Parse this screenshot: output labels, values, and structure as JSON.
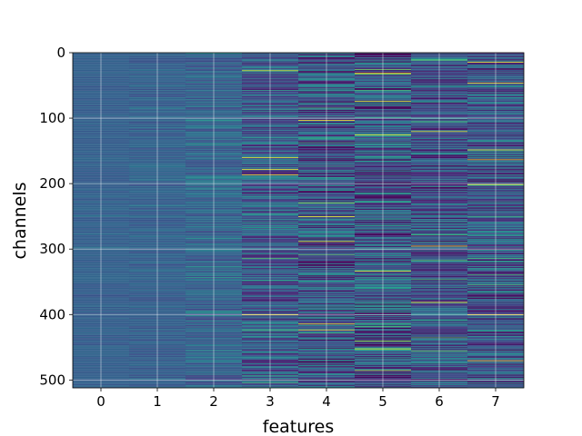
{
  "chart_data": {
    "type": "heatmap",
    "title": "",
    "xlabel": "features",
    "ylabel": "channels",
    "x_ticks": [
      "0",
      "1",
      "2",
      "3",
      "4",
      "5",
      "6",
      "7"
    ],
    "y_ticks": [
      "0",
      "100",
      "200",
      "300",
      "400",
      "500"
    ],
    "columns": 8,
    "rows": 512,
    "xlim": [
      -0.5,
      7.5
    ],
    "ylim": [
      512,
      0
    ],
    "y_axis_inverted": true,
    "grid": true,
    "colormap": "viridis",
    "colormap_stops": [
      "#440154",
      "#46327e",
      "#365c8d",
      "#277f8e",
      "#1fa187",
      "#4ac16d",
      "#a0da39",
      "#fde725"
    ],
    "column_stats": [
      {
        "feature": 0,
        "mean": 0.3,
        "spread": 0.04
      },
      {
        "feature": 1,
        "mean": 0.3,
        "spread": 0.06
      },
      {
        "feature": 2,
        "mean": 0.31,
        "spread": 0.12
      },
      {
        "feature": 3,
        "mean": 0.27,
        "spread": 0.22
      },
      {
        "feature": 4,
        "mean": 0.25,
        "spread": 0.28
      },
      {
        "feature": 5,
        "mean": 0.26,
        "spread": 0.3
      },
      {
        "feature": 6,
        "mean": 0.24,
        "spread": 0.24
      },
      {
        "feature": 7,
        "mean": 0.25,
        "spread": 0.26
      }
    ],
    "highlights": [
      {
        "feature": 3,
        "channels": [
          27,
          160,
          178,
          186,
          400
        ]
      },
      {
        "feature": 4,
        "channels": [
          103,
          250,
          288,
          414,
          423
        ]
      },
      {
        "feature": 5,
        "channels": [
          31,
          74,
          125,
          333,
          452
        ]
      },
      {
        "feature": 6,
        "channels": [
          120,
          295,
          381
        ]
      },
      {
        "feature": 7,
        "channels": [
          14,
          46,
          148,
          163,
          201,
          400,
          470
        ]
      }
    ]
  }
}
